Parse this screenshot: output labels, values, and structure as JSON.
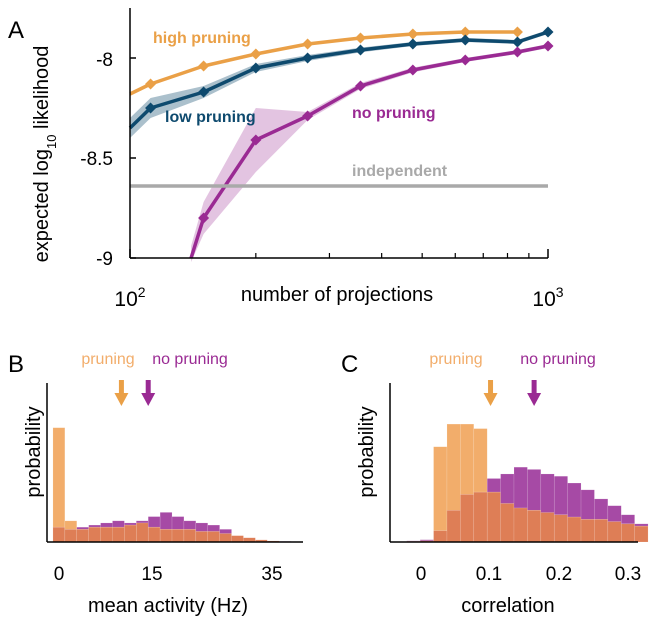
{
  "colors": {
    "high_pruning": "#eaa047",
    "low_pruning": "#0e4a6e",
    "no_pruning": "#9a2a93",
    "independent": "#a9a9a9",
    "pruning_hist": "#f2ad6b",
    "no_pruning_hist": "#a64aa5",
    "overlap_hist": "#de7e56",
    "axis": "#000000"
  },
  "chart_data": [
    {
      "panel_label": "A",
      "type": "line",
      "xscale": "log",
      "xlim": [
        100,
        1000
      ],
      "ylim": [
        -9,
        -7.75
      ],
      "xlabel": "number of projections",
      "ylabel_parts": [
        "expected log",
        "10",
        " likelihood"
      ],
      "xticks": [
        100,
        1000
      ],
      "xtick_labels": [
        {
          "base": "10",
          "exp": "2"
        },
        {
          "base": "10",
          "exp": "3"
        }
      ],
      "yticks": [
        -8,
        -8.5,
        -9
      ],
      "ytick_labels": [
        "-8",
        "-8.5",
        "-9"
      ],
      "series": [
        {
          "name": "high pruning",
          "color_key": "high_pruning",
          "x": [
            100,
            112,
            150,
            200,
            266,
            356,
            475,
            634,
            845
          ],
          "y": [
            -8.18,
            -8.13,
            -8.04,
            -7.98,
            -7.93,
            -7.9,
            -7.88,
            -7.87,
            -7.87
          ],
          "band": null
        },
        {
          "name": "low pruning",
          "color_key": "low_pruning",
          "x": [
            100,
            112,
            150,
            200,
            266,
            356,
            475,
            634,
            845,
            1000
          ],
          "y": [
            -8.35,
            -8.25,
            -8.17,
            -8.05,
            -8.0,
            -7.96,
            -7.93,
            -7.91,
            -7.92,
            -7.87
          ],
          "band": [
            0.05,
            0.05,
            0.03,
            0.02,
            0.015,
            0.012,
            0.01,
            0.01,
            0.01,
            0.01
          ]
        },
        {
          "name": "no pruning",
          "color_key": "no_pruning",
          "x": [
            140,
            150,
            200,
            266,
            356,
            475,
            634,
            845,
            1000
          ],
          "y": [
            -9.0,
            -8.8,
            -8.41,
            -8.29,
            -8.14,
            -8.06,
            -8.01,
            -7.97,
            -7.94
          ],
          "band": [
            0.06,
            0.08,
            0.16,
            0.02,
            0.015,
            0.012,
            0.01,
            0.01,
            0.01
          ]
        },
        {
          "name": "independent",
          "color_key": "independent",
          "x": [
            100,
            1000
          ],
          "y": [
            -8.64,
            -8.64
          ],
          "band": null
        }
      ]
    },
    {
      "panel_label": "B",
      "type": "bar",
      "xlabel": "mean activity (Hz)",
      "ylabel": "probability",
      "xlim": [
        -1,
        42
      ],
      "xticks": [
        0,
        15,
        35
      ],
      "xtick_labels": [
        "0",
        "15",
        "35"
      ],
      "bin_width": 2,
      "bin_start": 0,
      "pruning": [
        0.54,
        0.1,
        0.06,
        0.07,
        0.07,
        0.07,
        0.08,
        0.09,
        0.07,
        0.06,
        0.06,
        0.06,
        0.05,
        0.05,
        0.04,
        0.03,
        0.02,
        0.01,
        0.005,
        0.0,
        0.0
      ],
      "no_pruning": [
        0.07,
        0.06,
        0.07,
        0.08,
        0.09,
        0.1,
        0.09,
        0.1,
        0.12,
        0.14,
        0.12,
        0.1,
        0.09,
        0.08,
        0.06,
        0.03,
        0.02,
        0.01,
        0.005,
        0.003,
        0.0
      ],
      "ylim": [
        0,
        0.6
      ],
      "markers": [
        {
          "name": "pruning",
          "x": 11.5,
          "color_key": "high_pruning"
        },
        {
          "name": "no pruning",
          "x": 16,
          "color_key": "no_pruning"
        }
      ]
    },
    {
      "panel_label": "C",
      "type": "bar",
      "xlabel": "correlation",
      "ylabel": "probability",
      "xlim": [
        -0.065,
        0.305
      ],
      "xticks": [
        0,
        0.1,
        0.2,
        0.3
      ],
      "xtick_labels": [
        "0",
        "0.1",
        "0.2",
        "0.3"
      ],
      "bin_width": 0.02,
      "bin_start": -0.04,
      "pruning": [
        0.003,
        0.005,
        0.42,
        0.52,
        0.52,
        0.5,
        0.22,
        0.17,
        0.15,
        0.14,
        0.13,
        0.12,
        0.11,
        0.1,
        0.1,
        0.09,
        0.08,
        0.07
      ],
      "no_pruning": [
        0.005,
        0.01,
        0.05,
        0.14,
        0.21,
        0.22,
        0.28,
        0.3,
        0.33,
        0.32,
        0.3,
        0.29,
        0.26,
        0.23,
        0.19,
        0.16,
        0.12,
        0.08
      ],
      "ylim": [
        0,
        0.56
      ],
      "markers": [
        {
          "name": "pruning",
          "x": 0.085,
          "color_key": "high_pruning"
        },
        {
          "name": "no pruning",
          "x": 0.15,
          "color_key": "no_pruning"
        }
      ]
    }
  ]
}
